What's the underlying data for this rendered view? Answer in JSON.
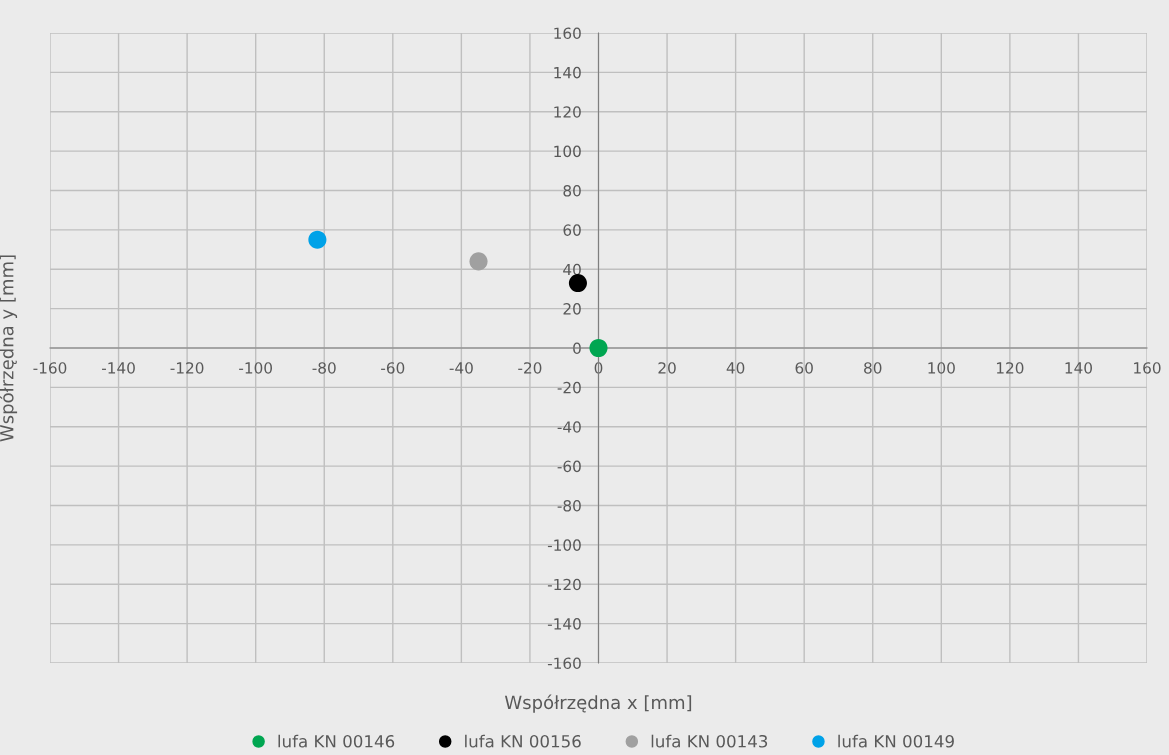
{
  "chart_data": {
    "type": "scatter",
    "xlabel": "Współrzędna x [mm]",
    "ylabel": "Współrzędna y [mm]",
    "xlim": [
      -160,
      160
    ],
    "ylim": [
      -160,
      160
    ],
    "xticks": [
      -160,
      -140,
      -120,
      -100,
      -80,
      -60,
      -40,
      -20,
      0,
      20,
      40,
      60,
      80,
      100,
      120,
      140,
      160
    ],
    "yticks": [
      -160,
      -140,
      -120,
      -100,
      -80,
      -60,
      -40,
      -20,
      0,
      20,
      40,
      60,
      80,
      100,
      120,
      140,
      160
    ],
    "grid": true,
    "legend": "bottom",
    "marker": "circle",
    "series": [
      {
        "name": "lufa KN 00146",
        "color": "#00a651",
        "x": [
          0
        ],
        "values": [
          0
        ]
      },
      {
        "name": "lufa KN 00156",
        "color": "#000000",
        "x": [
          -6
        ],
        "values": [
          33
        ]
      },
      {
        "name": "lufa KN 00143",
        "color": "#a0a0a0",
        "x": [
          -35
        ],
        "values": [
          44
        ]
      },
      {
        "name": "lufa KN 00149",
        "color": "#00a2e8",
        "x": [
          -82
        ],
        "values": [
          55
        ]
      }
    ]
  }
}
